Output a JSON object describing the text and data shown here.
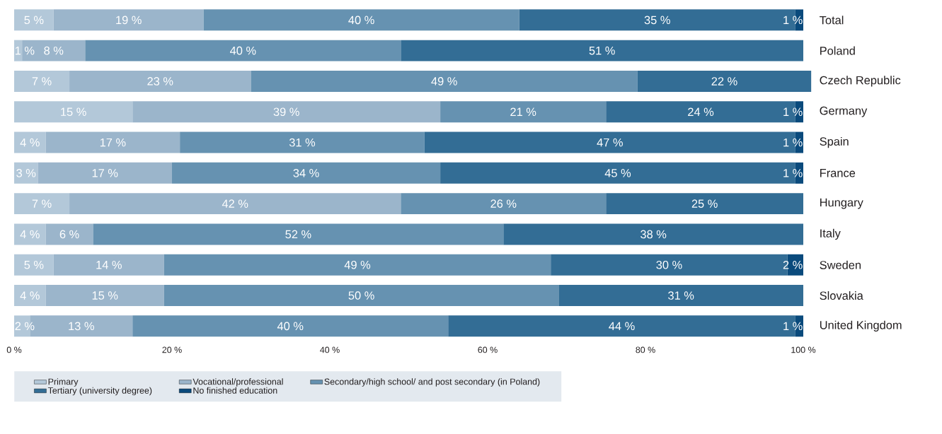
{
  "chart_data": {
    "type": "bar",
    "orientation": "horizontal",
    "stacked": true,
    "data_labels": false,
    "legend": "bottom",
    "grid": false,
    "categories": [
      "Total",
      "Poland",
      "Czech Republic",
      "Germany",
      "Spain",
      "France",
      "Hungary",
      "Italy",
      "Sweden",
      "Slovakia",
      "United Kingdom"
    ],
    "xlim": [
      0,
      101
    ],
    "xticks": [
      {
        "value": 0,
        "label": "0 %"
      },
      {
        "value": 20,
        "label": "20 %"
      },
      {
        "value": 40,
        "label": "40 %"
      },
      {
        "value": 60,
        "label": "60 %"
      },
      {
        "value": 80,
        "label": "80 %"
      },
      {
        "value": 100,
        "label": "100 %"
      }
    ],
    "series": [
      {
        "name": "Primary",
        "color": "#b3c8d9",
        "values": [
          5,
          1,
          7,
          15,
          4,
          3,
          7,
          4,
          5,
          4,
          2
        ],
        "value_labels": [
          "5 %",
          "1 %",
          "7 %",
          "15 %",
          "4 %",
          "3 %",
          "7 %",
          "4 %",
          "5 %",
          "4 %",
          "2 %"
        ]
      },
      {
        "name": "Vocational/professional",
        "color": "#9bb5cb",
        "values": [
          19,
          8,
          23,
          39,
          17,
          17,
          42,
          6,
          14,
          15,
          13
        ],
        "value_labels": [
          "19 %",
          "8 %",
          "23 %",
          "39 %",
          "17 %",
          "17 %",
          "42 %",
          "6 %",
          "14 %",
          "15 %",
          "13 %"
        ]
      },
      {
        "name": "Secondary/high school/ and post secondary (in Poland)",
        "color": "#6692b1",
        "values": [
          40,
          40,
          49,
          21,
          31,
          34,
          26,
          52,
          49,
          50,
          40
        ],
        "value_labels": [
          "40 %",
          "40 %",
          "49 %",
          "21 %",
          "31 %",
          "34 %",
          "26 %",
          "52 %",
          "49 %",
          "50 %",
          "40 %"
        ]
      },
      {
        "name": "Tertiary (university degree)",
        "color": "#336d95",
        "values": [
          35,
          51,
          22,
          24,
          47,
          45,
          25,
          38,
          30,
          31,
          44
        ],
        "value_labels": [
          "35 %",
          "51 %",
          "22 %",
          "24 %",
          "47 %",
          "45 %",
          "25 %",
          "38 %",
          "30 %",
          "31 %",
          "44 %"
        ]
      },
      {
        "name": "No finished education",
        "color": "#0a4a7c",
        "values": [
          1,
          null,
          null,
          1,
          1,
          1,
          null,
          null,
          2,
          null,
          1
        ],
        "value_labels": [
          "1 %",
          null,
          null,
          "1 %",
          "1 %",
          "1 %",
          null,
          null,
          "2 %",
          null,
          "1 %"
        ]
      }
    ]
  }
}
